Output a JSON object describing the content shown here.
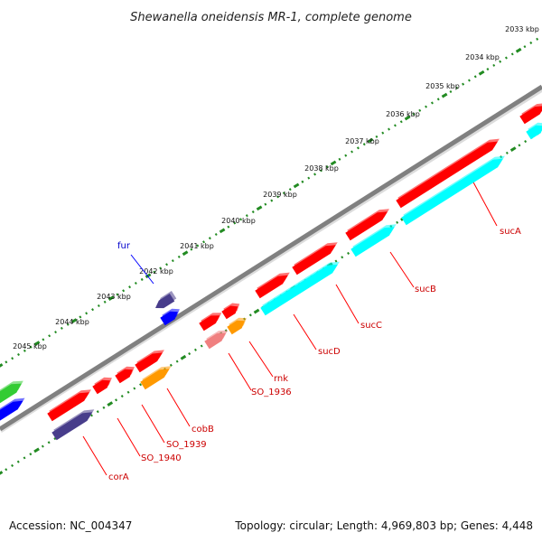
{
  "title": "Shewanella oneidensis MR-1, complete genome",
  "footer": {
    "accession": "Accession: NC_004347",
    "summary": "Topology: circular; Length: 4,969,803 bp; Genes: 4,448"
  },
  "scale": {
    "unit": "kbp",
    "ticks": [
      "2033 kbp",
      "2034 kbp",
      "2035 kbp",
      "2036 kbp",
      "2037 kbp",
      "2038 kbp",
      "2039 kbp",
      "2040 kbp",
      "2041 kbp",
      "2042 kbp",
      "2043 kbp",
      "2044 kbp",
      "2045 kbp"
    ]
  },
  "colors": {
    "backbone": "#808080",
    "forward_gene": "#ff0000",
    "reverse_gene": "#0000ff",
    "cyan_gene": "#00ffff",
    "orange_gene": "#ff9900",
    "purple_gene": "#483d8b",
    "pink_gene": "#f08080",
    "green_gene": "#33cc33",
    "dots": "#228b22",
    "forward_label": "#cc0000",
    "reverse_label": "#0000cc"
  },
  "gene_labels": [
    {
      "name": "sucA",
      "strand": "forward"
    },
    {
      "name": "sucB",
      "strand": "forward"
    },
    {
      "name": "sucC",
      "strand": "forward"
    },
    {
      "name": "sucD",
      "strand": "forward"
    },
    {
      "name": "rnk",
      "strand": "forward"
    },
    {
      "name": "SO_1936",
      "strand": "forward"
    },
    {
      "name": "cobB",
      "strand": "forward"
    },
    {
      "name": "SO_1939",
      "strand": "forward"
    },
    {
      "name": "SO_1940",
      "strand": "forward"
    },
    {
      "name": "corA",
      "strand": "forward"
    },
    {
      "name": "fur",
      "strand": "reverse"
    }
  ]
}
